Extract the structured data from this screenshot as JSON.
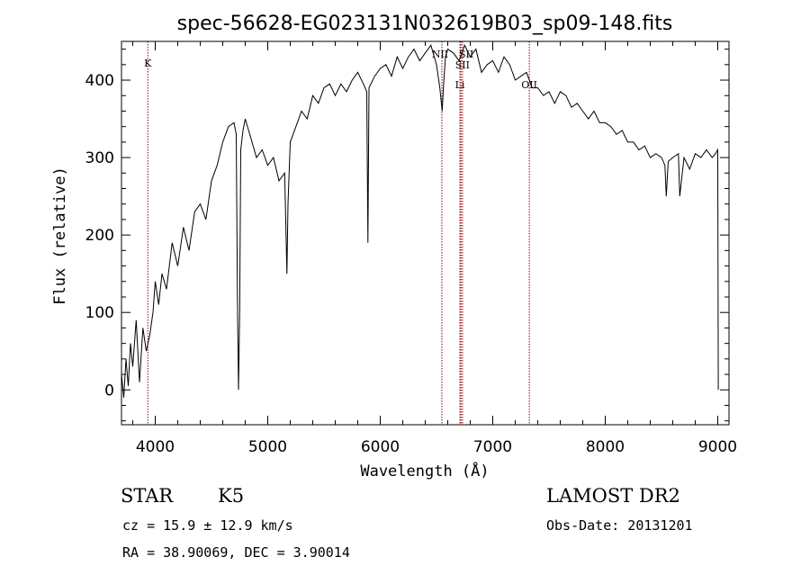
{
  "chart_data": {
    "type": "line",
    "title": "spec-56628-EG023131N032619B03_sp09-148.fits",
    "xlabel": "Wavelength (Å)",
    "ylabel": "Flux (relative)",
    "xlim": [
      3700,
      9100
    ],
    "ylim": [
      -45,
      450
    ],
    "x_ticks": [
      4000,
      5000,
      6000,
      7000,
      8000,
      9000
    ],
    "y_ticks": [
      0,
      100,
      200,
      300,
      400
    ],
    "grid": false,
    "series": [
      {
        "x": [
          3700,
          3720,
          3740,
          3760,
          3780,
          3800,
          3830,
          3860,
          3890,
          3920,
          3950,
          3980,
          4000,
          4030,
          4060,
          4100,
          4150,
          4200,
          4250,
          4300,
          4350,
          4400,
          4450,
          4500,
          4550,
          4600,
          4650,
          4700,
          4720,
          4730,
          4740,
          4750,
          4760,
          4780,
          4800,
          4850,
          4900,
          4950,
          5000,
          5050,
          5100,
          5150,
          5170,
          5180,
          5200,
          5250,
          5300,
          5350,
          5400,
          5450,
          5500,
          5550,
          5600,
          5650,
          5700,
          5750,
          5800,
          5850,
          5880,
          5890,
          5900,
          5950,
          6000,
          6050,
          6100,
          6150,
          6200,
          6250,
          6300,
          6350,
          6400,
          6450,
          6500,
          6530,
          6550,
          6563,
          6580,
          6600,
          6650,
          6700,
          6750,
          6800,
          6850,
          6900,
          6950,
          7000,
          7050,
          7100,
          7150,
          7200,
          7250,
          7300,
          7350,
          7400,
          7450,
          7500,
          7550,
          7600,
          7650,
          7700,
          7750,
          7800,
          7850,
          7900,
          7950,
          8000,
          8050,
          8100,
          8150,
          8200,
          8250,
          8300,
          8350,
          8400,
          8450,
          8500,
          8530,
          8542,
          8560,
          8600,
          8650,
          8662,
          8700,
          8750,
          8800,
          8850,
          8900,
          8950,
          8980,
          9000,
          9005
        ],
        "y": [
          20,
          -10,
          40,
          5,
          60,
          30,
          90,
          10,
          80,
          50,
          70,
          100,
          140,
          110,
          150,
          130,
          190,
          160,
          210,
          180,
          230,
          240,
          220,
          270,
          290,
          320,
          340,
          345,
          330,
          120,
          0,
          100,
          310,
          335,
          350,
          325,
          300,
          310,
          290,
          300,
          270,
          280,
          150,
          240,
          320,
          340,
          360,
          350,
          380,
          370,
          390,
          395,
          380,
          395,
          385,
          400,
          410,
          395,
          385,
          190,
          390,
          405,
          415,
          420,
          405,
          430,
          415,
          430,
          440,
          425,
          435,
          445,
          420,
          390,
          360,
          395,
          430,
          440,
          435,
          425,
          445,
          430,
          440,
          410,
          420,
          425,
          410,
          430,
          420,
          400,
          405,
          410,
          390,
          390,
          380,
          385,
          370,
          385,
          380,
          365,
          370,
          360,
          350,
          360,
          345,
          345,
          340,
          330,
          335,
          320,
          320,
          310,
          315,
          300,
          305,
          300,
          290,
          250,
          295,
          300,
          305,
          250,
          300,
          285,
          305,
          300,
          310,
          300,
          305,
          310,
          0
        ]
      }
    ],
    "line_markers": [
      {
        "label": "K",
        "x": 3934
      },
      {
        "label": "NII",
        "x": 6548
      },
      {
        "label": "SII",
        "x": 6717
      },
      {
        "label": "SII",
        "x": 6731
      },
      {
        "label": "Li",
        "x": 6708
      },
      {
        "label": "OII",
        "x": 7325
      }
    ]
  },
  "info": {
    "class": "STAR",
    "subclass": "K5",
    "survey": "LAMOST DR2",
    "cz": "cz = 15.9 ± 12.9 km/s",
    "obs_date": "Obs-Date: 20131201",
    "coords": "RA =  38.90069, DEC =   3.90014"
  },
  "colors": {
    "axes": "#000000",
    "spectrum": "#000000",
    "markers": "#8b0000",
    "background": "#ffffff"
  }
}
